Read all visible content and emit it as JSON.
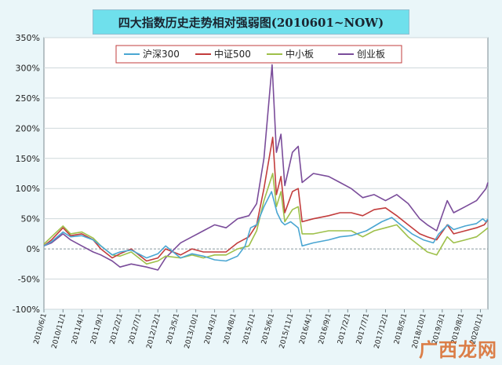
{
  "chart_data": {
    "type": "line",
    "title": "四大指数历史走势相对强弱图(2010601~NOW)",
    "ylim": [
      -100,
      350
    ],
    "yticks": [
      -100,
      -50,
      0,
      50,
      100,
      150,
      200,
      250,
      300,
      350
    ],
    "ytick_format": "%",
    "grid": true,
    "legend": "top-center",
    "x_tick_labels": [
      "2010/6/1",
      "2010/11/1",
      "2011/4/1",
      "2011/9/1",
      "2012/2/1",
      "2012/7/1",
      "2012/12/1",
      "2013/5/1",
      "2013/10/1",
      "2014/3/1",
      "2014/8/1",
      "2015/1/1",
      "2015/6/1",
      "2015/11/1",
      "2016/4/1",
      "2016/9/1",
      "2017/2/1",
      "2017/7/1",
      "2017/12/1",
      "2018/5/1",
      "2018/10/1",
      "2019/3/1",
      "2019/8/1",
      "2020/1/1"
    ],
    "x_end": "2020/3/1",
    "series": [
      {
        "name": "沪深300",
        "color": "#4aa6d2",
        "values": [
          [
            "2010/6/1",
            5
          ],
          [
            "2010/8/1",
            12
          ],
          [
            "2010/11/1",
            28
          ],
          [
            "2011/1/1",
            20
          ],
          [
            "2011/4/1",
            22
          ],
          [
            "2011/7/1",
            15
          ],
          [
            "2011/9/1",
            5
          ],
          [
            "2011/12/1",
            -10
          ],
          [
            "2012/2/1",
            -5
          ],
          [
            "2012/5/1",
            -2
          ],
          [
            "2012/9/1",
            -15
          ],
          [
            "2012/12/1",
            -8
          ],
          [
            "2013/2/1",
            5
          ],
          [
            "2013/6/1",
            -15
          ],
          [
            "2013/9/1",
            -8
          ],
          [
            "2013/12/1",
            -12
          ],
          [
            "2014/3/1",
            -18
          ],
          [
            "2014/6/1",
            -20
          ],
          [
            "2014/9/1",
            -12
          ],
          [
            "2014/11/1",
            5
          ],
          [
            "2014/12/15",
            35
          ],
          [
            "2015/2/1",
            40
          ],
          [
            "2015/4/1",
            70
          ],
          [
            "2015/6/1",
            95
          ],
          [
            "2015/7/15",
            60
          ],
          [
            "2015/8/20",
            45
          ],
          [
            "2015/9/15",
            40
          ],
          [
            "2015/11/1",
            45
          ],
          [
            "2016/1/1",
            35
          ],
          [
            "2016/2/1",
            5
          ],
          [
            "2016/5/1",
            10
          ],
          [
            "2016/9/1",
            15
          ],
          [
            "2016/12/1",
            20
          ],
          [
            "2017/3/1",
            22
          ],
          [
            "2017/7/1",
            30
          ],
          [
            "2017/11/1",
            45
          ],
          [
            "2018/1/20",
            52
          ],
          [
            "2018/4/1",
            40
          ],
          [
            "2018/7/1",
            25
          ],
          [
            "2018/10/1",
            15
          ],
          [
            "2018/12/20",
            10
          ],
          [
            "2019/2/1",
            25
          ],
          [
            "2019/4/15",
            40
          ],
          [
            "2019/6/1",
            32
          ],
          [
            "2019/9/1",
            38
          ],
          [
            "2019/12/1",
            42
          ],
          [
            "2020/1/20",
            50
          ],
          [
            "2020/2/15",
            45
          ],
          [
            "2020/3/1",
            50
          ]
        ]
      },
      {
        "name": "中证500",
        "color": "#c23c3c",
        "values": [
          [
            "2010/6/1",
            5
          ],
          [
            "2010/8/1",
            15
          ],
          [
            "2010/11/1",
            35
          ],
          [
            "2011/1/1",
            22
          ],
          [
            "2011/4/1",
            25
          ],
          [
            "2011/7/1",
            15
          ],
          [
            "2011/9/1",
            0
          ],
          [
            "2011/12/1",
            -15
          ],
          [
            "2012/2/1",
            -8
          ],
          [
            "2012/5/1",
            0
          ],
          [
            "2012/9/1",
            -20
          ],
          [
            "2012/12/1",
            -15
          ],
          [
            "2013/2/1",
            0
          ],
          [
            "2013/6/1",
            -10
          ],
          [
            "2013/9/1",
            0
          ],
          [
            "2013/12/1",
            -5
          ],
          [
            "2014/3/1",
            -5
          ],
          [
            "2014/6/1",
            -5
          ],
          [
            "2014/9/1",
            10
          ],
          [
            "2014/12/1",
            20
          ],
          [
            "2015/2/1",
            40
          ],
          [
            "2015/4/1",
            100
          ],
          [
            "2015/6/10",
            185
          ],
          [
            "2015/7/10",
            90
          ],
          [
            "2015/8/15",
            120
          ],
          [
            "2015/9/15",
            60
          ],
          [
            "2015/11/15",
            95
          ],
          [
            "2016/1/1",
            100
          ],
          [
            "2016/2/1",
            45
          ],
          [
            "2016/5/1",
            50
          ],
          [
            "2016/9/1",
            55
          ],
          [
            "2016/12/1",
            60
          ],
          [
            "2017/3/1",
            60
          ],
          [
            "2017/6/1",
            55
          ],
          [
            "2017/9/1",
            65
          ],
          [
            "2017/12/1",
            68
          ],
          [
            "2018/3/1",
            55
          ],
          [
            "2018/6/1",
            40
          ],
          [
            "2018/9/1",
            25
          ],
          [
            "2018/11/1",
            20
          ],
          [
            "2019/1/15",
            15
          ],
          [
            "2019/4/10",
            40
          ],
          [
            "2019/6/1",
            25
          ],
          [
            "2019/9/1",
            30
          ],
          [
            "2019/12/1",
            35
          ],
          [
            "2020/2/1",
            40
          ],
          [
            "2020/3/1",
            48
          ]
        ]
      },
      {
        "name": "中小板",
        "color": "#9ec04a",
        "values": [
          [
            "2010/6/1",
            8
          ],
          [
            "2010/8/1",
            20
          ],
          [
            "2010/11/1",
            38
          ],
          [
            "2011/1/1",
            25
          ],
          [
            "2011/4/1",
            28
          ],
          [
            "2011/7/1",
            18
          ],
          [
            "2011/9/1",
            5
          ],
          [
            "2011/12/1",
            -10
          ],
          [
            "2012/2/1",
            -12
          ],
          [
            "2012/5/1",
            -5
          ],
          [
            "2012/9/1",
            -25
          ],
          [
            "2012/12/1",
            -20
          ],
          [
            "2013/2/1",
            -12
          ],
          [
            "2013/6/1",
            -15
          ],
          [
            "2013/9/1",
            -10
          ],
          [
            "2013/12/1",
            -15
          ],
          [
            "2014/3/1",
            -10
          ],
          [
            "2014/6/1",
            -10
          ],
          [
            "2014/9/1",
            0
          ],
          [
            "2014/12/1",
            5
          ],
          [
            "2015/2/1",
            30
          ],
          [
            "2015/4/1",
            80
          ],
          [
            "2015/6/10",
            125
          ],
          [
            "2015/7/10",
            70
          ],
          [
            "2015/8/15",
            95
          ],
          [
            "2015/9/15",
            45
          ],
          [
            "2015/11/15",
            65
          ],
          [
            "2016/1/1",
            70
          ],
          [
            "2016/2/1",
            25
          ],
          [
            "2016/5/1",
            25
          ],
          [
            "2016/9/1",
            30
          ],
          [
            "2016/12/1",
            30
          ],
          [
            "2017/3/1",
            30
          ],
          [
            "2017/6/1",
            20
          ],
          [
            "2017/9/1",
            30
          ],
          [
            "2017/12/1",
            35
          ],
          [
            "2018/3/1",
            40
          ],
          [
            "2018/6/1",
            20
          ],
          [
            "2018/9/1",
            5
          ],
          [
            "2018/11/1",
            -5
          ],
          [
            "2019/1/15",
            -10
          ],
          [
            "2019/4/10",
            20
          ],
          [
            "2019/6/1",
            10
          ],
          [
            "2019/9/1",
            15
          ],
          [
            "2019/12/1",
            20
          ],
          [
            "2020/2/1",
            30
          ],
          [
            "2020/3/1",
            35
          ]
        ]
      },
      {
        "name": "创业板",
        "color": "#7a4c9a",
        "values": [
          [
            "2010/6/1",
            5
          ],
          [
            "2010/8/1",
            10
          ],
          [
            "2010/11/1",
            25
          ],
          [
            "2011/1/1",
            15
          ],
          [
            "2011/4/1",
            5
          ],
          [
            "2011/7/1",
            -5
          ],
          [
            "2011/9/1",
            -10
          ],
          [
            "2011/12/1",
            -20
          ],
          [
            "2012/2/1",
            -30
          ],
          [
            "2012/5/1",
            -25
          ],
          [
            "2012/9/1",
            -30
          ],
          [
            "2012/12/1",
            -35
          ],
          [
            "2013/2/1",
            -15
          ],
          [
            "2013/6/1",
            10
          ],
          [
            "2013/9/1",
            20
          ],
          [
            "2013/12/1",
            30
          ],
          [
            "2014/3/1",
            40
          ],
          [
            "2014/6/1",
            35
          ],
          [
            "2014/9/1",
            50
          ],
          [
            "2014/12/1",
            55
          ],
          [
            "2015/2/1",
            75
          ],
          [
            "2015/4/1",
            150
          ],
          [
            "2015/6/5",
            305
          ],
          [
            "2015/7/10",
            160
          ],
          [
            "2015/8/15",
            190
          ],
          [
            "2015/9/15",
            105
          ],
          [
            "2015/11/15",
            160
          ],
          [
            "2016/1/1",
            170
          ],
          [
            "2016/2/1",
            110
          ],
          [
            "2016/5/1",
            125
          ],
          [
            "2016/9/1",
            120
          ],
          [
            "2016/12/1",
            110
          ],
          [
            "2017/3/1",
            100
          ],
          [
            "2017/6/1",
            85
          ],
          [
            "2017/9/1",
            90
          ],
          [
            "2017/12/1",
            80
          ],
          [
            "2018/3/1",
            90
          ],
          [
            "2018/6/1",
            75
          ],
          [
            "2018/9/1",
            50
          ],
          [
            "2018/11/1",
            40
          ],
          [
            "2019/1/15",
            30
          ],
          [
            "2019/4/10",
            80
          ],
          [
            "2019/6/1",
            60
          ],
          [
            "2019/9/1",
            70
          ],
          [
            "2019/12/1",
            80
          ],
          [
            "2020/2/15",
            100
          ],
          [
            "2020/3/1",
            110
          ]
        ]
      }
    ]
  },
  "watermark": "广西龙网"
}
